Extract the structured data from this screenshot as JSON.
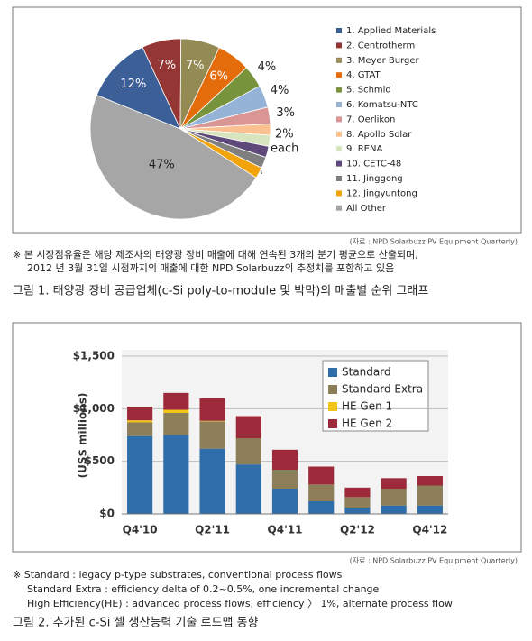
{
  "chart_data": [
    {
      "type": "pie",
      "categories": [
        "1. Applied Materials",
        "2. Centrotherm",
        "3. Meyer Burger",
        "4. GTAT",
        "5. Schmid",
        "6. Komatsu-NTC",
        "7. Oerlikon",
        "8. Apollo Solar",
        "9. RENA",
        "10. CETC-48",
        "11. Jinggong",
        "12. Jingyuntong",
        "All Other"
      ],
      "values": [
        12,
        7,
        7,
        6,
        4,
        4,
        3,
        2,
        2,
        2,
        2,
        2,
        47
      ],
      "value_labels": [
        "12%",
        "7%",
        "7%",
        "6%",
        "4%",
        "4%",
        "3%",
        null,
        null,
        null,
        null,
        null,
        "47%"
      ],
      "colors": [
        "#3b5f96",
        "#943634",
        "#948a54",
        "#e46c0a",
        "#77933c",
        "#95b3d7",
        "#d99694",
        "#fac090",
        "#d7e4bd",
        "#5f497a",
        "#7f7f7f",
        "#f0a30a",
        "#a6a6a6"
      ],
      "annotation": [
        "2%",
        "each"
      ],
      "legend": "right"
    },
    {
      "type": "stacked_bar",
      "categories": [
        "Q4'10",
        null,
        "Q2'11",
        null,
        "Q4'11",
        null,
        "Q2'12",
        null,
        "Q4'12"
      ],
      "y_label": "(US$ millions)",
      "series": [
        {
          "name": "Standard",
          "color": "#2f6ea8",
          "values": [
            740,
            750,
            620,
            470,
            240,
            120,
            60,
            80,
            80
          ]
        },
        {
          "name": "Standard Extra",
          "color": "#8c7e58",
          "values": [
            130,
            210,
            260,
            250,
            180,
            160,
            100,
            160,
            190
          ]
        },
        {
          "name": "HE Gen 1",
          "color": "#f2c419",
          "values": [
            20,
            30,
            5,
            0,
            0,
            0,
            0,
            0,
            0
          ]
        },
        {
          "name": "HE Gen 2",
          "color": "#9c2a3a",
          "values": [
            130,
            160,
            215,
            210,
            190,
            170,
            90,
            100,
            90
          ]
        }
      ],
      "ylim": [
        0,
        1500
      ],
      "yticks": [
        {
          "value": 0,
          "label": "$0"
        },
        {
          "value": 500,
          "label": "$500"
        },
        {
          "value": 1000,
          "label": "$1,000"
        },
        {
          "value": 1500,
          "label": "$1,500"
        }
      ],
      "grid": true,
      "legend": "upper right"
    }
  ],
  "figure1": {
    "source": "(자료 : NPD Solarbuzz PV Equipment Quarterly)",
    "notes": [
      "※ 본 시장점유율은 해당 제조사의 태양광 장비 매출에 대해 연속된 3개의 분기 평균으로 산출되며,",
      "2012 년 3월 31일 시점까지의 매출에 대한 NPD Solarbuzz의 추정치를 포함하고 있음"
    ],
    "caption": "그림 1. 태양광 장비 공급업체(c-Si poly-to-module 및 박막)의 매출별 순위 그래프"
  },
  "figure2": {
    "source": "(자료 : NPD Solarbuzz PV Equipment Quarterly)",
    "notes": [
      "※ Standard : legacy p-type substrates, conventional process flows",
      "Standard Extra : efficiency delta of 0.2~0.5%, one incremental change",
      "High Efficiency(HE) : advanced process flows, efficiency 〉 1%, alternate process flow"
    ],
    "caption": "그림 2. 추가된 c-Si 셀 생산능력 기술 로드맵 동향"
  }
}
